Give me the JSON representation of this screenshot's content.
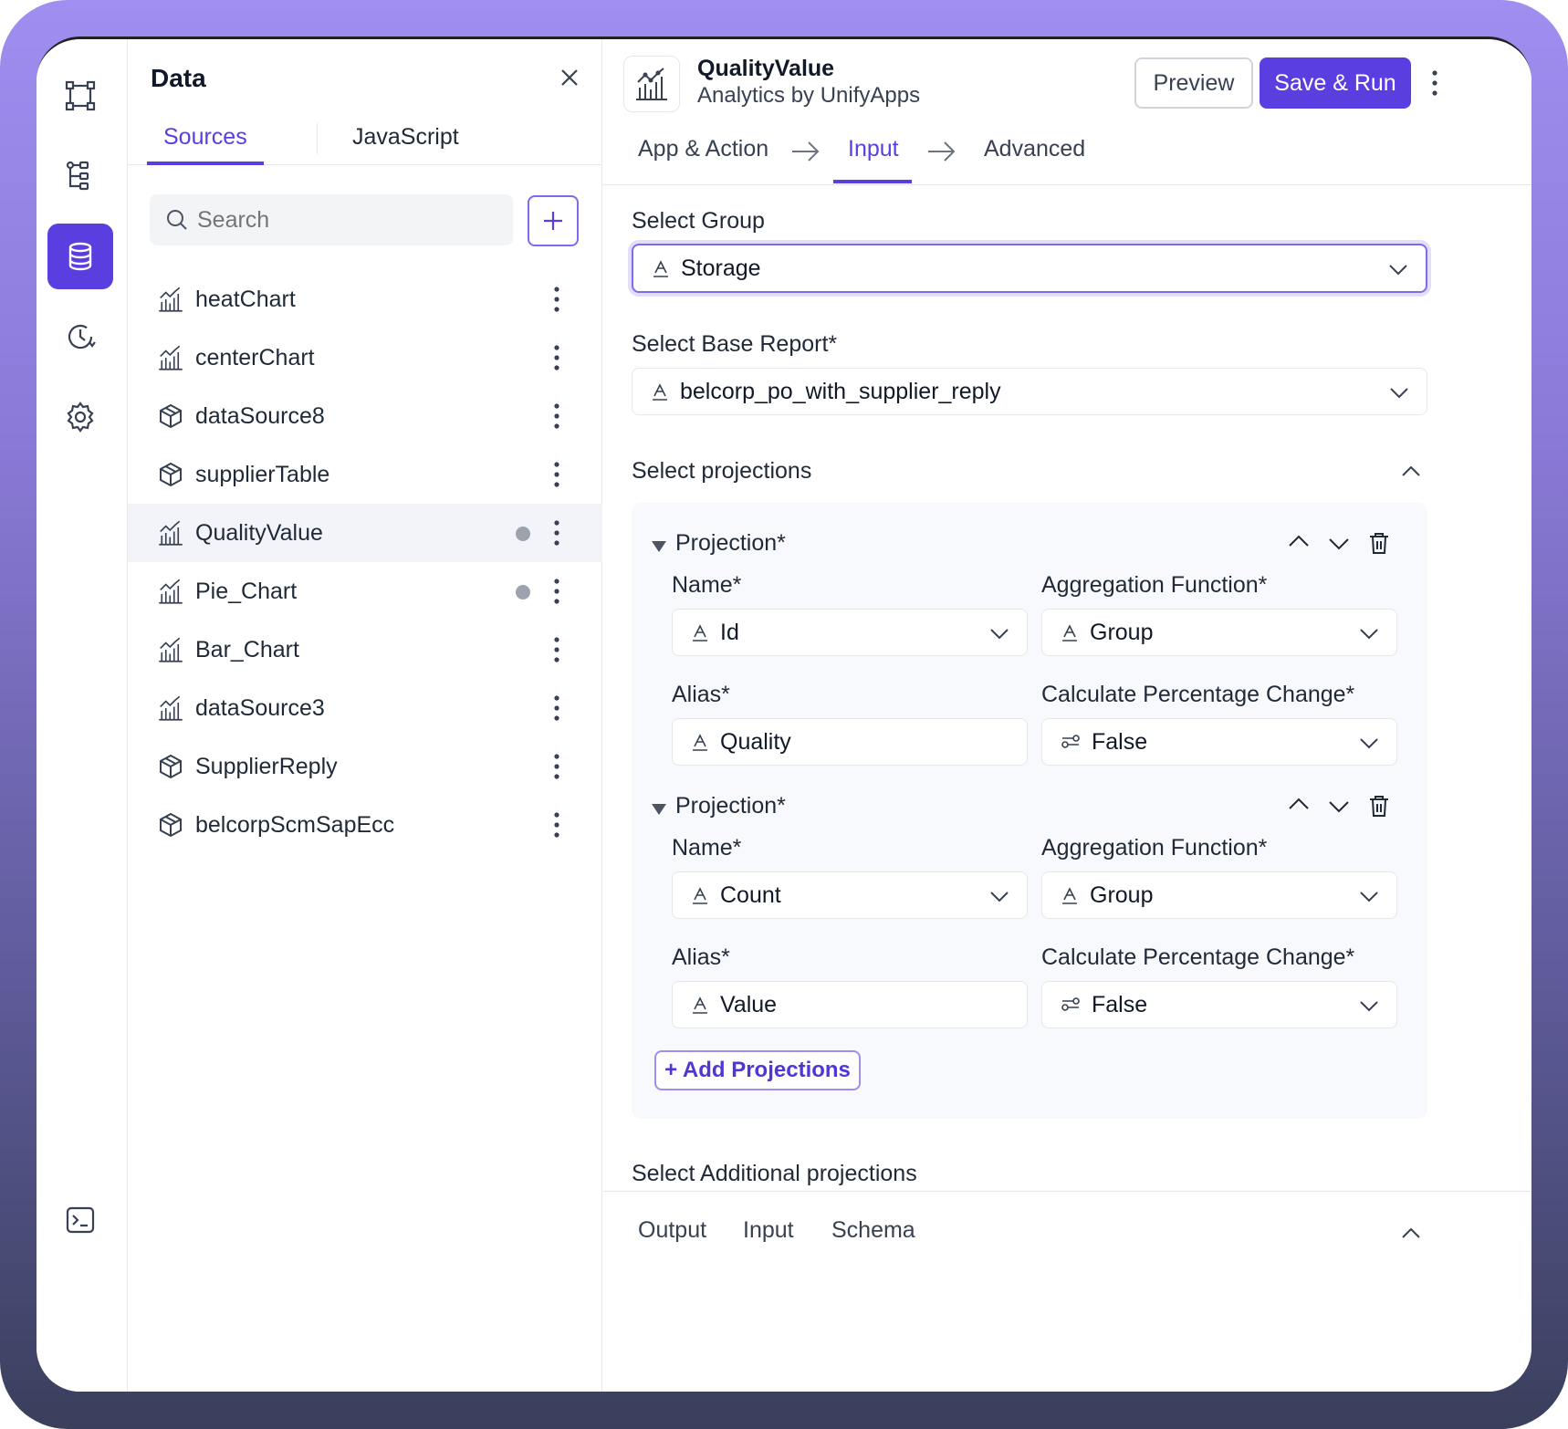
{
  "rail": {
    "icons": [
      "frame-icon",
      "tree-icon",
      "database-icon",
      "history-icon",
      "settings-icon",
      "terminal-icon"
    ],
    "active": "database-icon"
  },
  "left": {
    "title": "Data",
    "tabs": [
      {
        "label": "Sources"
      },
      {
        "label": "JavaScript"
      }
    ],
    "active_tab": "Sources",
    "search": {
      "placeholder": "Search"
    },
    "items": [
      {
        "label": "heatChart",
        "icon": "chart-icon",
        "dot": false
      },
      {
        "label": "centerChart",
        "icon": "chart-icon",
        "dot": false
      },
      {
        "label": "dataSource8",
        "icon": "cube-icon",
        "dot": false
      },
      {
        "label": "supplierTable",
        "icon": "cube-icon",
        "dot": false
      },
      {
        "label": "QualityValue",
        "icon": "chart-icon",
        "dot": true
      },
      {
        "label": "Pie_Chart",
        "icon": "chart-icon",
        "dot": true
      },
      {
        "label": "Bar_Chart",
        "icon": "chart-icon",
        "dot": false
      },
      {
        "label": "dataSource3",
        "icon": "chart-icon",
        "dot": false
      },
      {
        "label": "SupplierReply",
        "icon": "cube-icon",
        "dot": false
      },
      {
        "label": "belcorpScmSapEcc",
        "icon": "cube-icon",
        "dot": false
      }
    ],
    "selected": "QualityValue"
  },
  "header": {
    "app_name": "QualityValue",
    "app_sub": "Analytics by UnifyApps",
    "preview_label": "Preview",
    "run_label": "Save & Run"
  },
  "steps": {
    "items": [
      "App & Action",
      "Input",
      "Advanced"
    ],
    "active": "Input"
  },
  "form": {
    "group_label": "Select Group",
    "group_value": "Storage",
    "report_label": "Select Base Report*",
    "report_value": "belcorp_po_with_supplier_reply",
    "projections_label": "Select projections",
    "projections": [
      {
        "title": "Projection*",
        "name_label": "Name*",
        "name_value": "Id",
        "agg_label": "Aggregation Function*",
        "agg_value": "Group",
        "alias_label": "Alias*",
        "alias_value": "Quality",
        "pct_label": "Calculate Percentage Change*",
        "pct_value": "False"
      },
      {
        "title": "Projection*",
        "name_label": "Name*",
        "name_value": "Count",
        "agg_label": "Aggregation Function*",
        "agg_value": "Group",
        "alias_label": "Alias*",
        "alias_value": "Value",
        "pct_label": "Calculate Percentage Change*",
        "pct_value": "False"
      }
    ],
    "add_projections_label": "+ Add Projections",
    "additional_label": "Select Additional projections"
  },
  "bottom": {
    "tabs": [
      "Output",
      "Input",
      "Schema"
    ]
  },
  "colors": {
    "accent": "#5a3ee0",
    "frame_top": "#a08ef0",
    "frame_bottom": "#3a3f5c"
  }
}
